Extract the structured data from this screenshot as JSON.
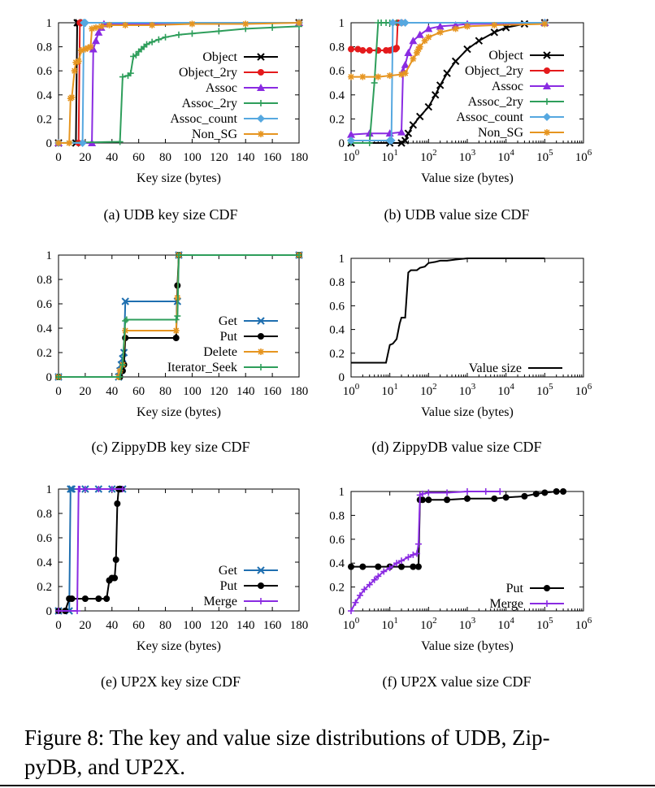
{
  "figure": {
    "caption": "Figure 8: The key and value size distributions of UDB, ZippyDB, and UP2X.",
    "caption_line1": "Figure 8: The key and value size distributions of UDB, Zip-",
    "caption_line2": "pyDB, and UP2X."
  },
  "colors": {
    "Object": "#000000",
    "Object_2ry": "#e41a1c",
    "Assoc": "#8a2be2",
    "Assoc_2ry": "#2e9e5b",
    "Assoc_count": "#56a8e0",
    "Non_SG": "#e69520",
    "Get": "#1f6fb0",
    "Put": "#000000",
    "Delete": "#e69520",
    "Iterator_Seek": "#2e9e5b",
    "Merge": "#8a2be2",
    "Value size": "#000000"
  },
  "chart_data": [
    {
      "id": "a",
      "type": "line",
      "title": "(a)  UDB key size CDF",
      "xlabel": "Key size (bytes)",
      "ylabel": "",
      "xscale": "linear",
      "xlim": [
        0,
        180
      ],
      "ylim": [
        0,
        1
      ],
      "xticks": [
        "0",
        "20",
        "40",
        "60",
        "80",
        "100",
        "120",
        "140",
        "160",
        "180"
      ],
      "yticks": [
        "0",
        "0.2",
        "0.4",
        "0.6",
        "0.8",
        "1"
      ],
      "legend_position": "right",
      "series": [
        {
          "name": "Object",
          "marker": "x",
          "x": [
            0,
            13,
            14,
            15,
            180
          ],
          "y": [
            0,
            0,
            1,
            1,
            1
          ]
        },
        {
          "name": "Object_2ry",
          "marker": "circle",
          "x": [
            0,
            15,
            16,
            17,
            180
          ],
          "y": [
            0,
            0,
            1,
            1,
            1
          ]
        },
        {
          "name": "Assoc",
          "marker": "triangle",
          "x": [
            0,
            25,
            26,
            28,
            30,
            32,
            34,
            180
          ],
          "y": [
            0,
            0,
            0.78,
            0.85,
            0.92,
            0.96,
            0.99,
            1
          ]
        },
        {
          "name": "Assoc_2ry",
          "marker": "plus",
          "x": [
            0,
            46,
            48,
            52,
            54,
            56,
            58,
            60,
            62,
            64,
            66,
            70,
            75,
            80,
            90,
            100,
            120,
            140,
            160,
            180
          ],
          "y": [
            0,
            0.01,
            0.55,
            0.56,
            0.58,
            0.72,
            0.73,
            0.76,
            0.78,
            0.8,
            0.82,
            0.84,
            0.86,
            0.88,
            0.9,
            0.91,
            0.93,
            0.95,
            0.96,
            0.97
          ]
        },
        {
          "name": "Assoc_count",
          "marker": "diamond",
          "x": [
            0,
            18,
            19,
            20,
            180
          ],
          "y": [
            0,
            0,
            1,
            1,
            1
          ]
        },
        {
          "name": "Non_SG",
          "marker": "asterisk",
          "x": [
            0,
            8,
            9,
            10,
            12,
            13,
            15,
            17,
            20,
            22,
            24,
            25,
            28,
            32,
            38,
            50,
            70,
            100,
            140,
            180
          ],
          "y": [
            0,
            0,
            0.37,
            0.38,
            0.6,
            0.67,
            0.68,
            0.77,
            0.78,
            0.79,
            0.8,
            0.95,
            0.96,
            0.97,
            0.98,
            0.98,
            0.98,
            0.99,
            0.99,
            1
          ]
        }
      ]
    },
    {
      "id": "b",
      "type": "line",
      "title": "(b)  UDB value size CDF",
      "xlabel": "Value size (bytes)",
      "ylabel": "",
      "xscale": "log",
      "xlim": [
        1,
        1000000
      ],
      "ylim": [
        0,
        1
      ],
      "xticks": [
        "10^0",
        "10^1",
        "10^2",
        "10^3",
        "10^4",
        "10^5",
        "10^6"
      ],
      "yticks": [
        "0",
        "0.2",
        "0.4",
        "0.6",
        "0.8",
        "1"
      ],
      "legend_position": "top-right",
      "series": [
        {
          "name": "Object",
          "marker": "x",
          "x": [
            1,
            10,
            20,
            25,
            30,
            40,
            60,
            100,
            150,
            200,
            300,
            500,
            1000,
            2000,
            5000,
            10000,
            30000,
            100000
          ],
          "y": [
            0,
            0,
            0,
            0.02,
            0.08,
            0.15,
            0.22,
            0.3,
            0.4,
            0.48,
            0.58,
            0.68,
            0.78,
            0.85,
            0.92,
            0.96,
            0.99,
            1
          ]
        },
        {
          "name": "Object_2ry",
          "marker": "circle",
          "x": [
            1,
            1.5,
            2,
            3,
            5,
            8,
            10,
            12,
            14,
            15,
            16,
            20,
            100000
          ],
          "y": [
            0.78,
            0.78,
            0.77,
            0.77,
            0.77,
            0.77,
            0.77,
            0.78,
            0.78,
            0.79,
            1,
            1,
            1
          ]
        },
        {
          "name": "Assoc",
          "marker": "triangle",
          "x": [
            1,
            3,
            10,
            20,
            22,
            25,
            30,
            40,
            60,
            100,
            200,
            500,
            1000,
            100000
          ],
          "y": [
            0.07,
            0.08,
            0.08,
            0.09,
            0.6,
            0.65,
            0.75,
            0.85,
            0.9,
            0.95,
            0.97,
            0.98,
            0.99,
            1
          ]
        },
        {
          "name": "Assoc_2ry",
          "marker": "plus",
          "x": [
            1,
            3,
            4,
            5,
            6,
            8,
            10,
            12,
            15,
            20,
            25,
            100000
          ],
          "y": [
            0,
            0,
            0.5,
            1,
            1,
            1,
            1,
            1,
            1,
            1,
            1,
            1
          ]
        },
        {
          "name": "Assoc_count",
          "marker": "diamond",
          "x": [
            1,
            10,
            11,
            12,
            20,
            25,
            100000
          ],
          "y": [
            0.02,
            0.02,
            0.02,
            1,
            1,
            1,
            1
          ]
        },
        {
          "name": "Non_SG",
          "marker": "asterisk",
          "x": [
            1,
            2,
            5,
            10,
            20,
            25,
            40,
            50,
            55,
            60,
            80,
            100,
            200,
            500,
            1000,
            5000,
            100000
          ],
          "y": [
            0.55,
            0.55,
            0.55,
            0.56,
            0.57,
            0.58,
            0.7,
            0.75,
            0.78,
            0.8,
            0.85,
            0.88,
            0.92,
            0.95,
            0.97,
            0.98,
            0.99
          ]
        }
      ]
    },
    {
      "id": "c",
      "type": "line",
      "title": "(c)  ZippyDB key size CDF",
      "xlabel": "Key size (bytes)",
      "ylabel": "",
      "xscale": "linear",
      "xlim": [
        0,
        180
      ],
      "ylim": [
        0,
        1
      ],
      "xticks": [
        "0",
        "20",
        "40",
        "60",
        "80",
        "100",
        "120",
        "140",
        "160",
        "180"
      ],
      "yticks": [
        "0",
        "0.2",
        "0.4",
        "0.6",
        "0.8",
        "1"
      ],
      "legend_position": "right",
      "series": [
        {
          "name": "Get",
          "marker": "x",
          "x": [
            0,
            45,
            46,
            47,
            48,
            49,
            50,
            89,
            90,
            180
          ],
          "y": [
            0,
            0,
            0.05,
            0.1,
            0.15,
            0.2,
            0.62,
            0.62,
            1,
            1
          ]
        },
        {
          "name": "Put",
          "marker": "circle",
          "x": [
            0,
            46,
            48,
            49,
            50,
            88,
            89,
            90,
            180
          ],
          "y": [
            0,
            0,
            0.05,
            0.1,
            0.32,
            0.32,
            0.75,
            1,
            1
          ]
        },
        {
          "name": "Delete",
          "marker": "asterisk",
          "x": [
            0,
            45,
            46,
            48,
            50,
            88,
            89,
            90,
            180
          ],
          "y": [
            0,
            0,
            0.05,
            0.1,
            0.38,
            0.38,
            0.65,
            1,
            1
          ]
        },
        {
          "name": "Iterator_Seek",
          "marker": "plus",
          "x": [
            0,
            46,
            48,
            50,
            51,
            88,
            89,
            90,
            180
          ],
          "y": [
            0,
            0,
            0.1,
            0.46,
            0.47,
            0.47,
            0.5,
            1,
            1
          ]
        }
      ]
    },
    {
      "id": "d",
      "type": "line",
      "title": "(d)  ZippyDB value size CDF",
      "xlabel": "Value size (bytes)",
      "ylabel": "",
      "xscale": "log",
      "xlim": [
        1,
        1000000
      ],
      "ylim": [
        0,
        1
      ],
      "xticks": [
        "10^0",
        "10^1",
        "10^2",
        "10^3",
        "10^4",
        "10^5",
        "10^6"
      ],
      "yticks": [
        "0",
        "0.2",
        "0.4",
        "0.6",
        "0.8",
        "1"
      ],
      "legend_position": "bottom-right",
      "series": [
        {
          "name": "Value size",
          "marker": "none",
          "x": [
            1,
            8,
            9,
            10,
            12,
            15,
            18,
            20,
            25,
            30,
            35,
            40,
            50,
            60,
            80,
            100,
            150,
            200,
            300,
            500,
            1000,
            10000,
            100000
          ],
          "y": [
            0.12,
            0.12,
            0.2,
            0.27,
            0.28,
            0.32,
            0.45,
            0.5,
            0.5,
            0.88,
            0.9,
            0.9,
            0.9,
            0.92,
            0.93,
            0.96,
            0.97,
            0.98,
            0.98,
            0.99,
            1,
            1,
            1
          ]
        }
      ]
    },
    {
      "id": "e",
      "type": "line",
      "title": "(e)  UP2X key size CDF",
      "xlabel": "Key size (bytes)",
      "ylabel": "",
      "xscale": "linear",
      "xlim": [
        0,
        180
      ],
      "ylim": [
        0,
        1
      ],
      "xticks": [
        "0",
        "20",
        "40",
        "60",
        "80",
        "100",
        "120",
        "140",
        "160",
        "180"
      ],
      "yticks": [
        "0",
        "0.2",
        "0.4",
        "0.6",
        "0.8",
        "1"
      ],
      "legend_position": "right",
      "series": [
        {
          "name": "Get",
          "marker": "x",
          "x": [
            0,
            8,
            9,
            10,
            20,
            30,
            40,
            48
          ],
          "y": [
            0,
            0,
            1,
            1,
            1,
            1,
            1,
            1
          ]
        },
        {
          "name": "Put",
          "marker": "circle",
          "x": [
            0,
            5,
            8,
            10,
            20,
            30,
            36,
            38,
            40,
            42,
            43,
            44,
            45,
            46,
            47
          ],
          "y": [
            0,
            0,
            0.1,
            0.1,
            0.1,
            0.1,
            0.1,
            0.25,
            0.27,
            0.27,
            0.42,
            0.88,
            1,
            1,
            1
          ]
        },
        {
          "name": "Merge",
          "marker": "plus",
          "x": [
            0,
            14,
            15,
            16,
            20,
            30,
            40,
            48
          ],
          "y": [
            0,
            0,
            1,
            1,
            1,
            1,
            1,
            1
          ]
        }
      ]
    },
    {
      "id": "f",
      "type": "line",
      "title": "(f)  UP2X value size CDF",
      "xlabel": "Value size (bytes)",
      "ylabel": "",
      "xscale": "log",
      "xlim": [
        1,
        1000000
      ],
      "ylim": [
        0,
        1
      ],
      "xticks": [
        "10^0",
        "10^1",
        "10^2",
        "10^3",
        "10^4",
        "10^5",
        "10^6"
      ],
      "yticks": [
        "0",
        "0.2",
        "0.4",
        "0.6",
        "0.8",
        "1"
      ],
      "legend_position": "bottom-right",
      "series": [
        {
          "name": "Put",
          "marker": "circle",
          "x": [
            1,
            2,
            5,
            10,
            20,
            40,
            55,
            60,
            70,
            100,
            300,
            1000,
            5000,
            10000,
            30000,
            60000,
            100000,
            200000,
            300000
          ],
          "y": [
            0.37,
            0.37,
            0.37,
            0.37,
            0.37,
            0.37,
            0.37,
            0.93,
            0.93,
            0.93,
            0.93,
            0.94,
            0.94,
            0.95,
            0.96,
            0.98,
            0.99,
            1,
            1
          ]
        },
        {
          "name": "Merge",
          "marker": "plus",
          "x": [
            1,
            1.3,
            1.7,
            2.2,
            3,
            4,
            5,
            7,
            10,
            15,
            20,
            30,
            40,
            50,
            55,
            60,
            70,
            100,
            300,
            1000,
            3000,
            7000
          ],
          "y": [
            0,
            0.07,
            0.13,
            0.18,
            0.22,
            0.26,
            0.29,
            0.33,
            0.36,
            0.4,
            0.42,
            0.45,
            0.47,
            0.48,
            0.56,
            0.97,
            0.98,
            0.99,
            0.99,
            1,
            1,
            1
          ]
        }
      ]
    }
  ]
}
